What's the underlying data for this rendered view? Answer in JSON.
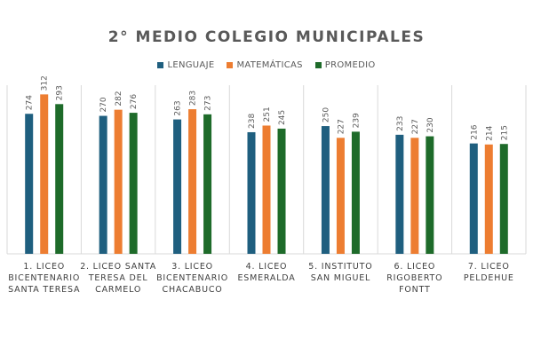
{
  "chart_data": {
    "type": "bar",
    "title": "2° MEDIO COLEGIO MUNICIPALES",
    "categories": [
      [
        "1. LICEO",
        "BICENTENARIO",
        "SANTA TERESA"
      ],
      [
        "2. LICEO SANTA",
        "TERESA DEL",
        "CARMELO"
      ],
      [
        "3. LICEO",
        "BICENTENARIO",
        "CHACABUCO"
      ],
      [
        "4. LICEO",
        "ESMERALDA"
      ],
      [
        "5. INSTITUTO",
        "SAN MIGUEL"
      ],
      [
        "6. LICEO",
        "RIGOBERTO",
        "FONTT"
      ],
      [
        "7. LICEO",
        "PELDEHUE"
      ]
    ],
    "series": [
      {
        "name": "LENGUAJE",
        "color": "#1f5f7f",
        "values": [
          274,
          270,
          263,
          238,
          250,
          233,
          216
        ]
      },
      {
        "name": "MATEMÁTICAS",
        "color": "#ed7d31",
        "values": [
          312,
          282,
          283,
          251,
          227,
          227,
          214
        ]
      },
      {
        "name": "PROMEDIO",
        "color": "#1e6b2a",
        "values": [
          293,
          276,
          273,
          245,
          239,
          230,
          215
        ]
      }
    ],
    "ylim": [
      0,
      330
    ],
    "legend_position": "top",
    "grid": false
  }
}
